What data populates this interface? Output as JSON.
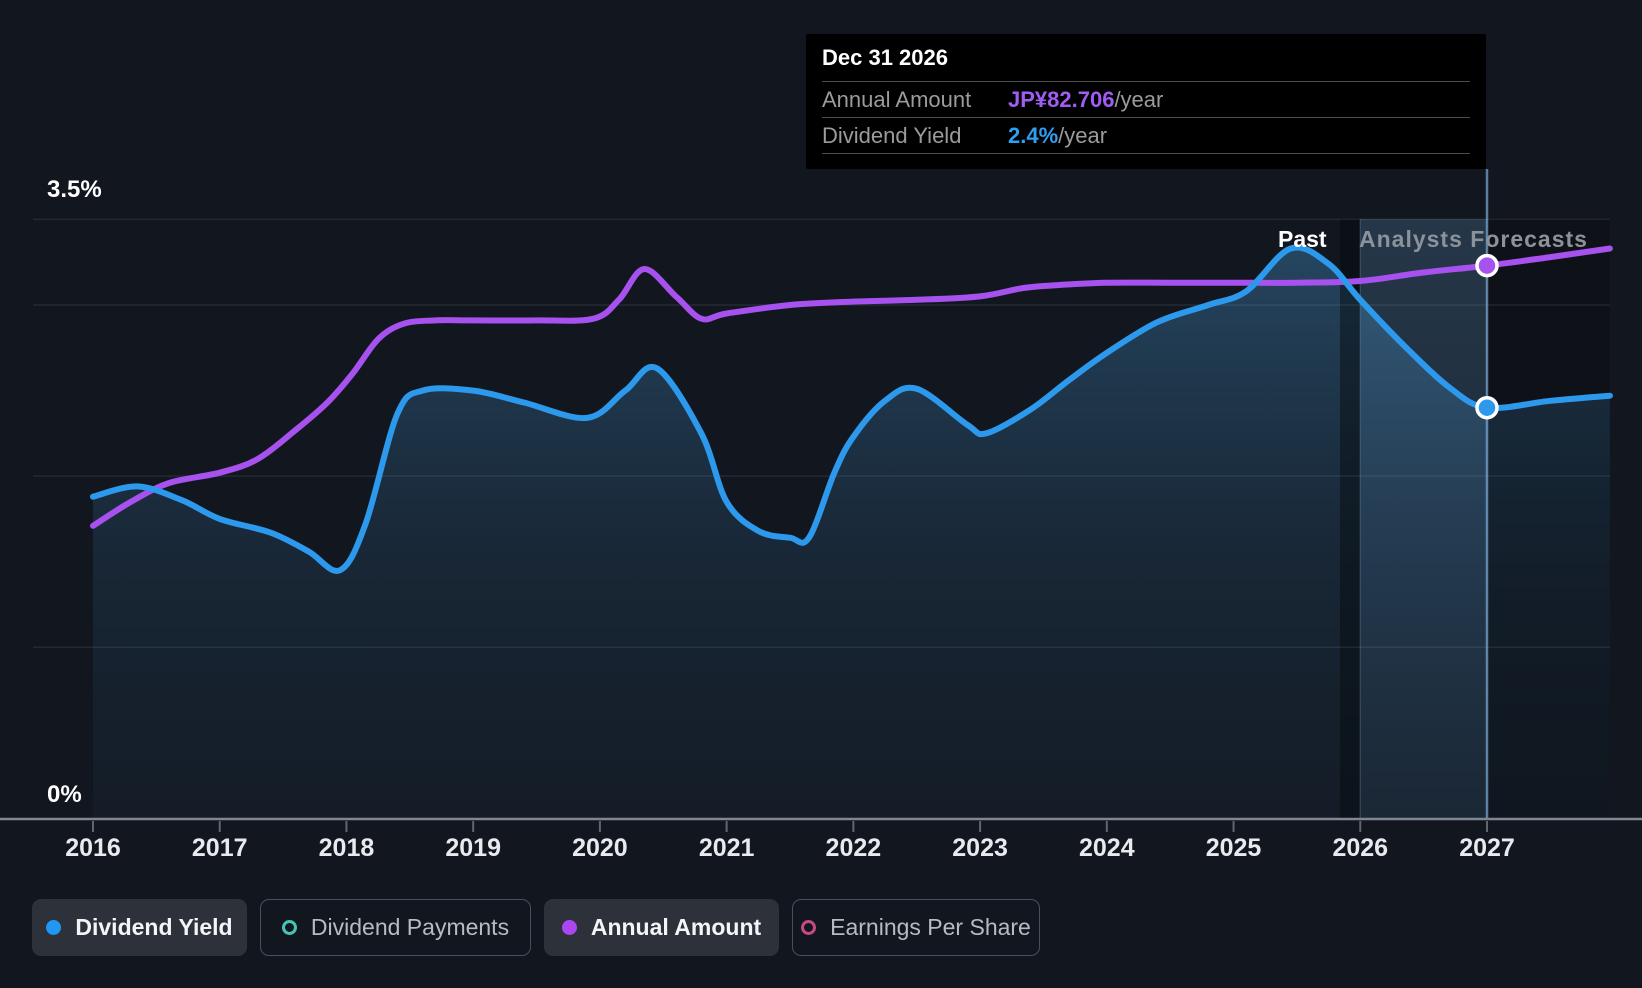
{
  "colors": {
    "background": "#12171f",
    "dividend_yield_line": "#2c99ec",
    "annual_amount_line": "#a751ef",
    "tooltip_value_amount": "#a05df3",
    "tooltip_value_yield": "#2e9ff2",
    "legend_teal": "#43c6b4",
    "legend_pink": "#c64a82",
    "axis_line": "#81878f",
    "grid_line": "rgba(255,255,255,0.08)"
  },
  "tooltip": {
    "title": "Dec 31 2026",
    "rows": [
      {
        "label": "Annual Amount",
        "value": "JP¥82.706",
        "suffix": "/year",
        "value_color": "#a05df3"
      },
      {
        "label": "Dividend Yield",
        "value": "2.4%",
        "suffix": "/year",
        "value_color": "#2e9ff2"
      }
    ]
  },
  "region_labels": {
    "past": "Past",
    "forecast": "Analysts Forecasts"
  },
  "legend": {
    "items": [
      {
        "label": "Dividend Yield",
        "color": "#2196f3",
        "style": "filled",
        "active": true
      },
      {
        "label": "Dividend Payments",
        "color": "#43c6b4",
        "style": "ring",
        "active": false
      },
      {
        "label": "Annual Amount",
        "color": "#ab47f0",
        "style": "filled",
        "active": true
      },
      {
        "label": "Earnings Per Share",
        "color": "#c64a82",
        "style": "ring",
        "active": false
      }
    ]
  },
  "chart_data": {
    "type": "line",
    "x_axis": {
      "ticks": [
        2016,
        2017,
        2018,
        2019,
        2020,
        2021,
        2022,
        2023,
        2024,
        2025,
        2026,
        2027
      ],
      "range": [
        2015.53,
        2027.97
      ]
    },
    "y_axis": {
      "unit": "%",
      "range": [
        0,
        3.5
      ],
      "label_top": "3.5%",
      "label_bottom": "0%",
      "gridlines_pct": [
        3.5,
        3.0,
        2.0,
        1.0,
        0
      ]
    },
    "regions": {
      "past_end_year": 2025.84,
      "highlight_band_years": [
        2026,
        2027
      ],
      "hover_year": 2027
    },
    "series": [
      {
        "name": "Dividend Yield",
        "color": "#2c99ec",
        "unit": "%",
        "area_fill": true,
        "marker": {
          "x": 2027,
          "y": 2.4,
          "label": "2.4%/year"
        },
        "points": [
          [
            2016.0,
            1.88
          ],
          [
            2016.35,
            1.94
          ],
          [
            2016.7,
            1.86
          ],
          [
            2017.0,
            1.75
          ],
          [
            2017.4,
            1.67
          ],
          [
            2017.7,
            1.56
          ],
          [
            2017.95,
            1.45
          ],
          [
            2018.15,
            1.72
          ],
          [
            2018.4,
            2.36
          ],
          [
            2018.6,
            2.5
          ],
          [
            2019.0,
            2.5
          ],
          [
            2019.4,
            2.43
          ],
          [
            2019.9,
            2.34
          ],
          [
            2020.2,
            2.5
          ],
          [
            2020.45,
            2.63
          ],
          [
            2020.8,
            2.25
          ],
          [
            2021.0,
            1.85
          ],
          [
            2021.25,
            1.68
          ],
          [
            2021.5,
            1.64
          ],
          [
            2021.65,
            1.64
          ],
          [
            2021.85,
            2.02
          ],
          [
            2022.0,
            2.23
          ],
          [
            2022.25,
            2.44
          ],
          [
            2022.5,
            2.51
          ],
          [
            2022.9,
            2.3
          ],
          [
            2023.05,
            2.25
          ],
          [
            2023.4,
            2.39
          ],
          [
            2023.7,
            2.56
          ],
          [
            2024.0,
            2.72
          ],
          [
            2024.4,
            2.9
          ],
          [
            2024.8,
            3.0
          ],
          [
            2025.1,
            3.08
          ],
          [
            2025.45,
            3.33
          ],
          [
            2025.75,
            3.24
          ],
          [
            2026.0,
            3.03
          ],
          [
            2026.35,
            2.76
          ],
          [
            2026.7,
            2.52
          ],
          [
            2027.0,
            2.4
          ],
          [
            2027.5,
            2.44
          ],
          [
            2027.97,
            2.47
          ]
        ]
      },
      {
        "name": "Annual Amount",
        "color": "#a751ef",
        "unit": "JP¥ (overlaid on % axis)",
        "area_fill": false,
        "marker": {
          "x": 2027,
          "y": 3.23,
          "label": "JP¥82.706/year"
        },
        "points": [
          [
            2016.0,
            1.71
          ],
          [
            2016.3,
            1.85
          ],
          [
            2016.6,
            1.96
          ],
          [
            2017.0,
            2.02
          ],
          [
            2017.3,
            2.1
          ],
          [
            2017.6,
            2.27
          ],
          [
            2017.85,
            2.43
          ],
          [
            2018.05,
            2.6
          ],
          [
            2018.25,
            2.8
          ],
          [
            2018.45,
            2.89
          ],
          [
            2018.7,
            2.91
          ],
          [
            2019.0,
            2.91
          ],
          [
            2019.5,
            2.91
          ],
          [
            2019.95,
            2.92
          ],
          [
            2020.15,
            3.03
          ],
          [
            2020.35,
            3.21
          ],
          [
            2020.6,
            3.05
          ],
          [
            2020.8,
            2.92
          ],
          [
            2021.0,
            2.95
          ],
          [
            2021.5,
            3.0
          ],
          [
            2022.0,
            3.02
          ],
          [
            2022.5,
            3.03
          ],
          [
            2023.0,
            3.05
          ],
          [
            2023.35,
            3.1
          ],
          [
            2023.7,
            3.12
          ],
          [
            2024.0,
            3.13
          ],
          [
            2024.5,
            3.13
          ],
          [
            2025.0,
            3.13
          ],
          [
            2025.5,
            3.13
          ],
          [
            2026.0,
            3.14
          ],
          [
            2026.5,
            3.19
          ],
          [
            2027.0,
            3.23
          ],
          [
            2027.5,
            3.28
          ],
          [
            2027.97,
            3.33
          ]
        ]
      }
    ]
  }
}
